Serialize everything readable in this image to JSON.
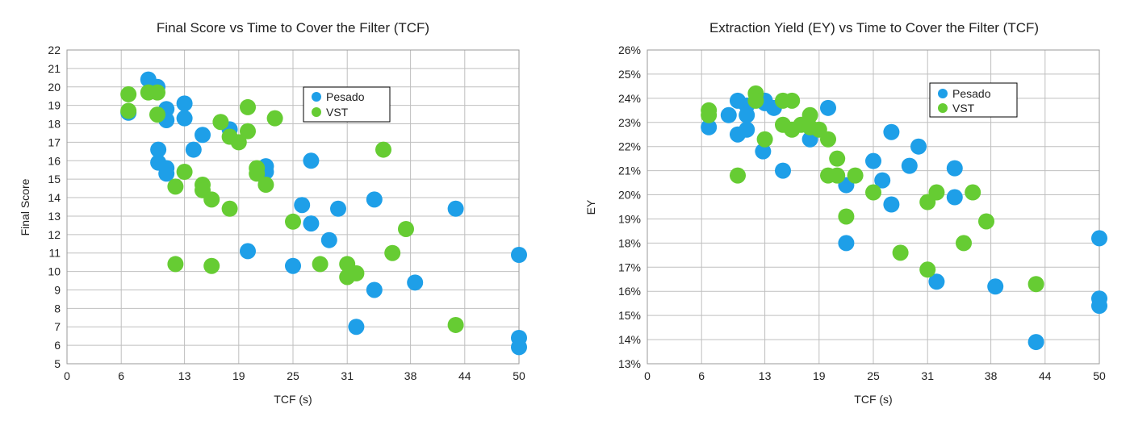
{
  "colors": {
    "pesado": "#1e9fe8",
    "vst": "#66cc33",
    "grid": "#bfbfbf"
  },
  "chart_data": [
    {
      "type": "scatter",
      "title": "Final Score vs Time to Cover the Filter (TCF)",
      "xlabel": "TCF (s)",
      "ylabel": "Final Score",
      "xlim": [
        0,
        50
      ],
      "ylim": [
        5,
        22
      ],
      "x_ticks": [
        0,
        6,
        13,
        19,
        25,
        31,
        38,
        44,
        50
      ],
      "y_ticks": [
        5,
        6,
        7,
        8,
        9,
        10,
        11,
        12,
        13,
        14,
        15,
        16,
        17,
        18,
        19,
        20,
        21,
        22
      ],
      "grid": true,
      "legend_position": "top-right",
      "series": [
        {
          "name": "Pesado",
          "color": "#1e9fe8",
          "points": [
            [
              6.8,
              18.6
            ],
            [
              9.0,
              20.4
            ],
            [
              10.0,
              20.0
            ],
            [
              10.1,
              15.9
            ],
            [
              10.1,
              16.6
            ],
            [
              11.0,
              15.3
            ],
            [
              11.0,
              15.6
            ],
            [
              11.0,
              18.8
            ],
            [
              11.0,
              18.2
            ],
            [
              13.0,
              19.1
            ],
            [
              13.0,
              18.3
            ],
            [
              14.0,
              16.6
            ],
            [
              15.0,
              17.4
            ],
            [
              18.0,
              17.7
            ],
            [
              20.0,
              11.1
            ],
            [
              22.0,
              15.7
            ],
            [
              22.0,
              15.4
            ],
            [
              25.0,
              10.3
            ],
            [
              26.0,
              13.6
            ],
            [
              27.0,
              12.6
            ],
            [
              27.0,
              16.0
            ],
            [
              29.0,
              11.7
            ],
            [
              30.0,
              13.4
            ],
            [
              32.0,
              7.0
            ],
            [
              34.0,
              13.9
            ],
            [
              34.0,
              9.0
            ],
            [
              38.5,
              9.4
            ],
            [
              43.0,
              13.4
            ],
            [
              50.0,
              10.9
            ],
            [
              50.0,
              6.4
            ],
            [
              50.0,
              5.9
            ]
          ]
        },
        {
          "name": "VST",
          "color": "#66cc33",
          "points": [
            [
              6.8,
              19.6
            ],
            [
              6.8,
              18.7
            ],
            [
              9.0,
              19.7
            ],
            [
              10.0,
              19.7
            ],
            [
              10.0,
              18.5
            ],
            [
              12.0,
              14.6
            ],
            [
              12.0,
              10.4
            ],
            [
              13.0,
              15.4
            ],
            [
              15.0,
              14.7
            ],
            [
              15.0,
              14.4
            ],
            [
              16.0,
              13.9
            ],
            [
              16.0,
              10.3
            ],
            [
              17.0,
              18.1
            ],
            [
              18.0,
              17.3
            ],
            [
              18.0,
              13.4
            ],
            [
              19.0,
              17.0
            ],
            [
              20.0,
              18.9
            ],
            [
              20.0,
              17.6
            ],
            [
              21.0,
              15.6
            ],
            [
              21.0,
              15.3
            ],
            [
              22.0,
              14.7
            ],
            [
              23.0,
              18.3
            ],
            [
              25.0,
              12.7
            ],
            [
              28.0,
              10.4
            ],
            [
              31.0,
              10.4
            ],
            [
              31.0,
              9.7
            ],
            [
              32.0,
              9.9
            ],
            [
              35.0,
              16.6
            ],
            [
              36.0,
              11.0
            ],
            [
              37.5,
              12.3
            ],
            [
              43.0,
              7.1
            ]
          ]
        }
      ]
    },
    {
      "type": "scatter",
      "title": "Extraction Yield (EY) vs Time to Cover the Filter (TCF)",
      "xlabel": "TCF (s)",
      "ylabel": "EY",
      "xlim": [
        0,
        50
      ],
      "ylim": [
        13,
        26
      ],
      "x_ticks": [
        0,
        6,
        13,
        19,
        25,
        31,
        38,
        44,
        50
      ],
      "y_ticks": [
        "13%",
        "14%",
        "15%",
        "16%",
        "17%",
        "18%",
        "19%",
        "20%",
        "21%",
        "22%",
        "23%",
        "24%",
        "25%",
        "26%"
      ],
      "grid": true,
      "legend_position": "top-right",
      "series": [
        {
          "name": "Pesado",
          "color": "#1e9fe8",
          "points": [
            [
              6.8,
              22.8
            ],
            [
              9.0,
              23.3
            ],
            [
              10.0,
              23.9
            ],
            [
              10.0,
              22.5
            ],
            [
              11.0,
              23.7
            ],
            [
              11.0,
              23.3
            ],
            [
              11.0,
              22.7
            ],
            [
              12.8,
              21.8
            ],
            [
              13.0,
              23.9
            ],
            [
              13.0,
              23.8
            ],
            [
              14.0,
              23.6
            ],
            [
              15.0,
              21.0
            ],
            [
              18.0,
              22.3
            ],
            [
              20.0,
              23.6
            ],
            [
              22.0,
              20.4
            ],
            [
              22.0,
              18.0
            ],
            [
              25.0,
              21.4
            ],
            [
              26.0,
              20.6
            ],
            [
              27.0,
              19.6
            ],
            [
              27.0,
              22.6
            ],
            [
              29.0,
              21.2
            ],
            [
              30.0,
              22.0
            ],
            [
              32.0,
              16.4
            ],
            [
              34.0,
              21.1
            ],
            [
              34.0,
              19.9
            ],
            [
              38.5,
              16.2
            ],
            [
              43.0,
              13.9
            ],
            [
              50.0,
              18.2
            ],
            [
              50.0,
              15.7
            ],
            [
              50.0,
              15.4
            ]
          ]
        },
        {
          "name": "VST",
          "color": "#66cc33",
          "points": [
            [
              6.8,
              23.5
            ],
            [
              6.8,
              23.3
            ],
            [
              10.0,
              20.8
            ],
            [
              12.0,
              24.2
            ],
            [
              12.0,
              23.9
            ],
            [
              13.0,
              22.3
            ],
            [
              15.0,
              22.9
            ],
            [
              15.0,
              23.9
            ],
            [
              16.0,
              22.7
            ],
            [
              16.0,
              23.9
            ],
            [
              17.0,
              22.9
            ],
            [
              18.0,
              23.3
            ],
            [
              18.0,
              22.8
            ],
            [
              19.0,
              22.7
            ],
            [
              20.0,
              22.3
            ],
            [
              20.0,
              20.8
            ],
            [
              21.0,
              21.5
            ],
            [
              21.0,
              20.8
            ],
            [
              22.0,
              19.1
            ],
            [
              23.0,
              20.8
            ],
            [
              25.0,
              20.1
            ],
            [
              28.0,
              17.6
            ],
            [
              31.0,
              16.9
            ],
            [
              31.0,
              19.7
            ],
            [
              32.0,
              20.1
            ],
            [
              35.0,
              18.0
            ],
            [
              36.0,
              20.1
            ],
            [
              37.5,
              18.9
            ],
            [
              43.0,
              16.3
            ]
          ]
        }
      ]
    }
  ]
}
